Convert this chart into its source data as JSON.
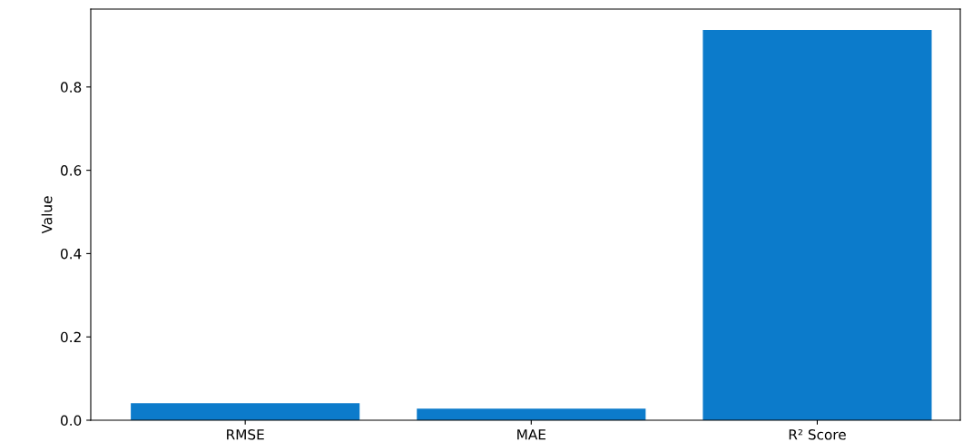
{
  "chart_data": {
    "type": "bar",
    "ylabel": "Value",
    "categories": [
      "RMSE",
      "MAE",
      "R² Score"
    ],
    "values": [
      0.041,
      0.028,
      0.937
    ],
    "color": "#0c7bcb",
    "ylim": [
      0,
      0.987
    ],
    "yticks": [
      {
        "value": 0,
        "label": "0.0"
      },
      0.2,
      0.4,
      0.6,
      0.8
    ],
    "grid": false
  }
}
